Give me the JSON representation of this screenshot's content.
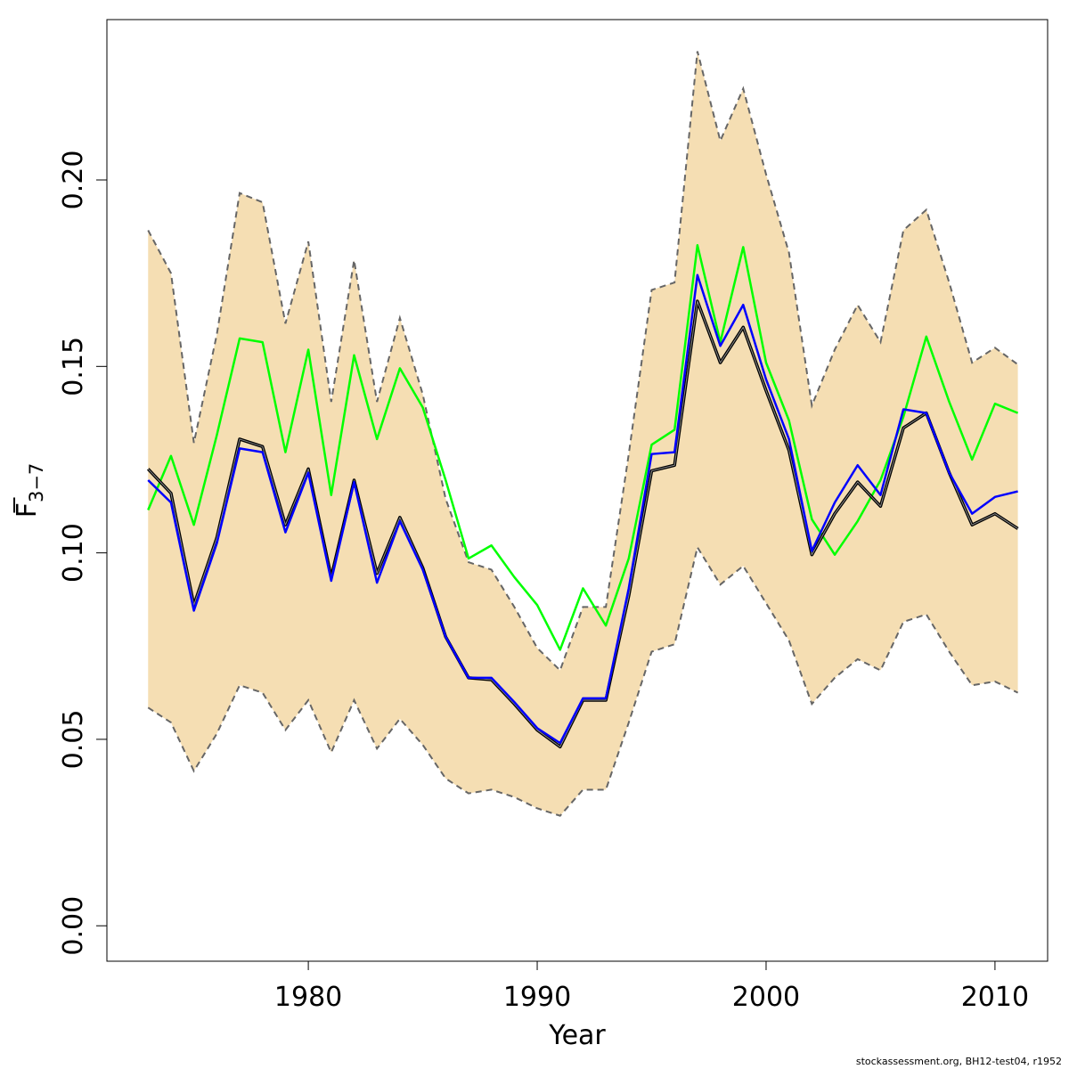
{
  "chart_data": {
    "type": "line",
    "xlabel": "Year",
    "ylabel_main": "F",
    "ylabel_sub": "3−7",
    "xlim": [
      1971.2,
      2012.3
    ],
    "ylim": [
      -0.0095,
      0.243
    ],
    "x_ticks": [
      1980,
      1990,
      2000,
      2010
    ],
    "x_tick_labels": [
      "1980",
      "1990",
      "2000",
      "2010"
    ],
    "y_ticks": [
      0.0,
      0.05,
      0.1,
      0.15,
      0.2
    ],
    "y_tick_labels": [
      "0.00",
      "0.05",
      "0.10",
      "0.15",
      "0.20"
    ],
    "x": [
      1973,
      1974,
      1975,
      1976,
      1977,
      1978,
      1979,
      1980,
      1981,
      1982,
      1983,
      1984,
      1985,
      1986,
      1987,
      1988,
      1989,
      1990,
      1991,
      1992,
      1993,
      1994,
      1995,
      1996,
      1997,
      1998,
      1999,
      2000,
      2001,
      2002,
      2003,
      2004,
      2005,
      2006,
      2007,
      2008,
      2009,
      2010,
      2011
    ],
    "band": {
      "name": "confidence interval",
      "fill": "#f5deb3",
      "edge": "#666666",
      "upper": [
        0.1865,
        0.175,
        0.1295,
        0.1585,
        0.1965,
        0.194,
        0.1615,
        0.1835,
        0.1405,
        0.1785,
        0.1405,
        0.163,
        0.1425,
        0.1145,
        0.0975,
        0.0955,
        0.0855,
        0.0745,
        0.0685,
        0.0855,
        0.0855,
        0.1265,
        0.1705,
        0.1725,
        0.2345,
        0.2105,
        0.2245,
        0.2015,
        0.1805,
        0.1395,
        0.1545,
        0.1665,
        0.1565,
        0.1865,
        0.192,
        0.1725,
        0.151,
        0.155,
        0.1505
      ],
      "lower": [
        0.0585,
        0.0545,
        0.0415,
        0.0515,
        0.0645,
        0.0625,
        0.0525,
        0.0605,
        0.0465,
        0.0605,
        0.0475,
        0.0555,
        0.0485,
        0.0395,
        0.0355,
        0.0365,
        0.0345,
        0.0315,
        0.0295,
        0.0365,
        0.0365,
        0.0545,
        0.0735,
        0.0755,
        0.1015,
        0.0915,
        0.0965,
        0.0865,
        0.0765,
        0.0595,
        0.0665,
        0.0715,
        0.0685,
        0.0815,
        0.0835,
        0.0735,
        0.0645,
        0.0655,
        0.0625
      ]
    },
    "series": [
      {
        "name": "green",
        "color": "#00ff00",
        "values": [
          0.1115,
          0.126,
          0.1075,
          0.1315,
          0.1575,
          0.1565,
          0.127,
          0.1545,
          0.1155,
          0.153,
          0.1305,
          0.1495,
          0.139,
          0.1195,
          0.0985,
          0.102,
          0.0935,
          0.086,
          0.074,
          0.0905,
          0.0805,
          0.0985,
          0.129,
          0.133,
          0.1825,
          0.1565,
          0.182,
          0.151,
          0.1355,
          0.109,
          0.0995,
          0.1085,
          0.1195,
          0.1365,
          0.158,
          0.1405,
          0.125,
          0.14,
          0.1375
        ]
      },
      {
        "name": "black",
        "color": "#000000",
        "values": [
          0.1225,
          0.116,
          0.086,
          0.104,
          0.1305,
          0.1285,
          0.1075,
          0.1225,
          0.0935,
          0.1195,
          0.0945,
          0.1095,
          0.096,
          0.0775,
          0.0665,
          0.066,
          0.0595,
          0.0525,
          0.048,
          0.0605,
          0.0605,
          0.0885,
          0.122,
          0.1235,
          0.1675,
          0.151,
          0.1605,
          0.1435,
          0.1275,
          0.0995,
          0.1105,
          0.119,
          0.1125,
          0.1335,
          0.1375,
          0.1215,
          0.1075,
          0.1105,
          0.1065
        ]
      },
      {
        "name": "blue",
        "color": "#0000ff",
        "values": [
          0.1195,
          0.1135,
          0.0845,
          0.1025,
          0.128,
          0.127,
          0.1055,
          0.1215,
          0.0925,
          0.119,
          0.092,
          0.1085,
          0.0955,
          0.0775,
          0.0665,
          0.0665,
          0.06,
          0.053,
          0.049,
          0.061,
          0.061,
          0.0905,
          0.1265,
          0.127,
          0.1745,
          0.1555,
          0.1665,
          0.1465,
          0.1305,
          0.1005,
          0.1135,
          0.1235,
          0.1155,
          0.1385,
          0.1375,
          0.1215,
          0.1105,
          0.115,
          0.1165
        ]
      }
    ]
  },
  "footer": "stockassessment.org, BH12-test04, r1952"
}
